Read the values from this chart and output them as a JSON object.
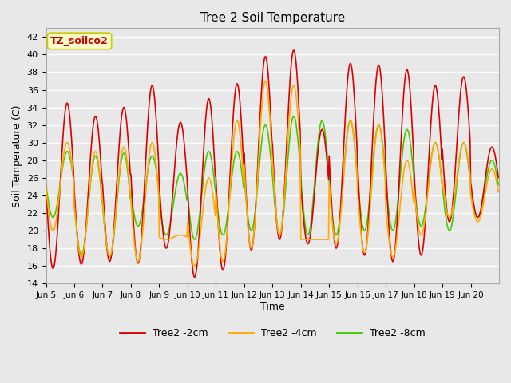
{
  "title": "Tree 2 Soil Temperature",
  "ylabel": "Soil Temperature (C)",
  "xlabel": "Time",
  "annotation": "TZ_soilco2",
  "ylim": [
    14,
    43
  ],
  "yticks": [
    14,
    16,
    18,
    20,
    22,
    24,
    26,
    28,
    30,
    32,
    34,
    36,
    38,
    40,
    42
  ],
  "xtick_labels": [
    "Jun 5",
    "Jun 6",
    "Jun 7",
    "Jun 8",
    "Jun 9",
    "Jun 10",
    "Jun 11",
    "Jun 12",
    "Jun 13",
    "Jun 14",
    "Jun 15",
    "Jun 16",
    "Jun 17",
    "Jun 18",
    "Jun 19",
    "Jun 20"
  ],
  "colors": {
    "2cm": "#dd0000",
    "4cm": "#ffaa00",
    "8cm": "#44cc00"
  },
  "legend_labels": [
    "Tree2 -2cm",
    "Tree2 -4cm",
    "Tree2 -8cm"
  ],
  "background_color": "#e8e8e8",
  "plot_bg_color": "#e8e8e8",
  "annotation_bg": "#ffffcc",
  "annotation_border": "#cccc00",
  "grid_color": "#ffffff",
  "num_days": 16,
  "points_per_day": 48,
  "day_peaks_2cm": [
    34.5,
    33.0,
    34.0,
    36.5,
    32.3,
    35.0,
    36.7,
    39.8,
    40.5,
    31.5,
    39.0,
    38.8,
    38.3,
    36.5,
    37.5,
    29.5
  ],
  "day_mins_2cm": [
    15.7,
    16.2,
    16.5,
    16.3,
    18.0,
    14.7,
    15.5,
    17.8,
    19.0,
    18.5,
    18.0,
    17.2,
    16.5,
    17.2,
    21.0,
    21.5
  ],
  "day_peaks_4cm": [
    30.0,
    29.0,
    29.5,
    30.0,
    19.5,
    26.0,
    32.5,
    37.0,
    36.5,
    19.0,
    32.5,
    32.0,
    28.0,
    30.0,
    30.0,
    27.0
  ],
  "day_mins_4cm": [
    20.0,
    17.0,
    17.1,
    16.5,
    19.0,
    16.0,
    16.5,
    18.0,
    19.5,
    19.0,
    18.5,
    17.5,
    17.0,
    19.5,
    21.5,
    21.0
  ],
  "day_peaks_8cm": [
    29.0,
    28.5,
    28.8,
    28.5,
    26.5,
    29.0,
    29.0,
    32.0,
    33.0,
    32.5,
    32.5,
    32.0,
    31.5,
    30.0,
    30.0,
    28.0
  ],
  "day_mins_8cm": [
    21.5,
    17.3,
    17.0,
    20.5,
    19.5,
    19.0,
    19.5,
    20.0,
    19.5,
    19.5,
    19.5,
    20.0,
    20.0,
    20.5,
    20.0,
    21.5
  ]
}
